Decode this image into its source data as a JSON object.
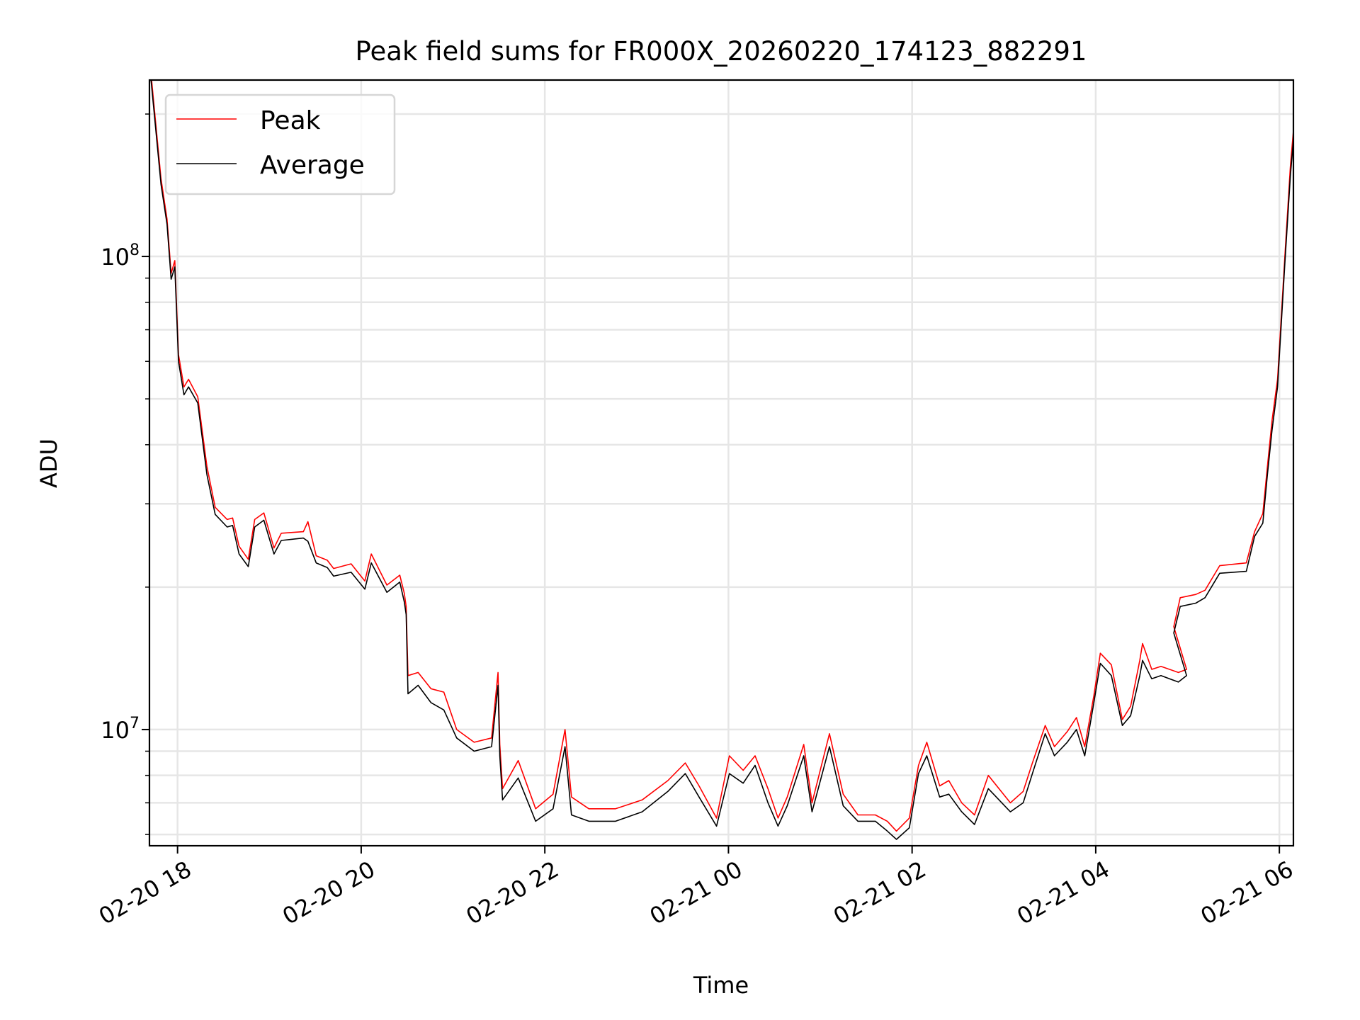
{
  "chart_data": {
    "type": "line",
    "title": "Peak field sums for FR000X_20260220_174123_882291",
    "xlabel": "Time",
    "ylabel": "ADU",
    "yscale": "log",
    "ylim": [
      5680000,
      236000000
    ],
    "xlim_hours": [
      17.694,
      30.153
    ],
    "grid": true,
    "legend_position": "top-left",
    "x_ticks": [
      {
        "hour": 18,
        "label": "02-20 18"
      },
      {
        "hour": 20,
        "label": "02-20 20"
      },
      {
        "hour": 22,
        "label": "02-20 22"
      },
      {
        "hour": 24,
        "label": "02-21 00"
      },
      {
        "hour": 26,
        "label": "02-21 02"
      },
      {
        "hour": 28,
        "label": "02-21 04"
      },
      {
        "hour": 30,
        "label": "02-21 06"
      }
    ],
    "y_ticks": [
      {
        "value": 10000000,
        "base": "10",
        "exp": "7"
      },
      {
        "value": 100000000,
        "base": "10",
        "exp": "8"
      }
    ],
    "series": [
      {
        "name": "Peak",
        "color": "#ff0000",
        "x_hours": [
          17.71,
          17.82,
          17.885,
          17.93,
          17.97,
          18.01,
          18.07,
          18.12,
          18.22,
          18.32,
          18.41,
          18.54,
          18.6,
          18.67,
          18.77,
          18.84,
          18.94,
          19.05,
          19.13,
          19.37,
          19.42,
          19.51,
          19.63,
          19.7,
          19.89,
          20.04,
          20.11,
          20.28,
          20.42,
          20.47,
          20.49,
          20.51,
          20.62,
          20.76,
          20.9,
          21.04,
          21.23,
          21.42,
          21.49,
          21.51,
          21.54,
          21.71,
          21.9,
          22.09,
          22.22,
          22.29,
          22.48,
          22.77,
          23.06,
          23.34,
          23.53,
          23.68,
          23.87,
          24.01,
          24.16,
          24.29,
          24.43,
          24.54,
          24.64,
          24.82,
          24.91,
          25.1,
          25.25,
          25.41,
          25.6,
          25.73,
          25.83,
          25.97,
          26.07,
          26.16,
          26.3,
          26.4,
          26.54,
          26.68,
          26.83,
          27.07,
          27.21,
          27.31,
          27.45,
          27.55,
          27.69,
          27.79,
          27.88,
          27.98,
          28.05,
          28.17,
          28.29,
          28.38,
          28.48,
          28.51,
          28.61,
          28.71,
          28.9,
          28.99,
          28.85,
          28.92,
          29.09,
          29.19,
          29.35,
          29.64,
          29.73,
          29.82,
          29.87,
          29.92,
          29.98,
          30.06,
          30.12,
          30.2,
          30.23
        ],
        "values": [
          244000000.0,
          146000000.0,
          120000000.0,
          92000000.0,
          98000000.0,
          62000000.0,
          53000000.0,
          55000000.0,
          50500000.0,
          36000000.0,
          29500000.0,
          27800000.0,
          28000000.0,
          24400000.0,
          22900000.0,
          27800000.0,
          28700000.0,
          24200000.0,
          26000000.0,
          26200000.0,
          27500000.0,
          23300000.0,
          22800000.0,
          21900000.0,
          22400000.0,
          20600000.0,
          23500000.0,
          20200000.0,
          21200000.0,
          19400000.0,
          18200000.0,
          13000000.0,
          13200000.0,
          12200000.0,
          12000000.0,
          10000000.0,
          9400000.0,
          9600000.0,
          13200000.0,
          9300000.0,
          7500000.0,
          8600000.0,
          6800000.0,
          7300000.0,
          10000000.0,
          7200000.0,
          6800000.0,
          6800000.0,
          7100000.0,
          7800000.0,
          8500000.0,
          7600000.0,
          6500000.0,
          8800000.0,
          8200000.0,
          8800000.0,
          7500000.0,
          6500000.0,
          7200000.0,
          9300000.0,
          7000000.0,
          9800000.0,
          7300000.0,
          6600000.0,
          6600000.0,
          6400000.0,
          6100000.0,
          6500000.0,
          8400000.0,
          9400000.0,
          7600000.0,
          7800000.0,
          7000000.0,
          6600000.0,
          8000000.0,
          7000000.0,
          7400000.0,
          8500000.0,
          10200000.0,
          9200000.0,
          9900000.0,
          10600000.0,
          9200000.0,
          11800000.0,
          14500000.0,
          13700000.0,
          10500000.0,
          11200000.0,
          14000000.0,
          15200000.0,
          13400000.0,
          13600000.0,
          13200000.0,
          13400000.0,
          16500000.0,
          19000000.0,
          19300000.0,
          19700000.0,
          22200000.0,
          22500000.0,
          26200000.0,
          28600000.0,
          36000000.0,
          45000000.0,
          55000000.0,
          100000000.0,
          155000000.0,
          236000000.0,
          244000000.0
        ]
      },
      {
        "name": "Average",
        "color": "#000000",
        "x_hours": [
          17.71,
          17.82,
          17.885,
          17.93,
          17.97,
          18.01,
          18.07,
          18.12,
          18.22,
          18.32,
          18.41,
          18.54,
          18.6,
          18.67,
          18.77,
          18.84,
          18.94,
          19.05,
          19.13,
          19.37,
          19.42,
          19.51,
          19.63,
          19.7,
          19.89,
          20.04,
          20.11,
          20.28,
          20.42,
          20.47,
          20.49,
          20.51,
          20.62,
          20.76,
          20.9,
          21.04,
          21.23,
          21.42,
          21.49,
          21.51,
          21.54,
          21.71,
          21.9,
          22.09,
          22.22,
          22.29,
          22.48,
          22.77,
          23.06,
          23.34,
          23.53,
          23.68,
          23.87,
          24.01,
          24.16,
          24.29,
          24.43,
          24.54,
          24.64,
          24.82,
          24.91,
          25.1,
          25.25,
          25.41,
          25.6,
          25.73,
          25.83,
          25.97,
          26.07,
          26.16,
          26.3,
          26.4,
          26.54,
          26.68,
          26.83,
          27.07,
          27.21,
          27.31,
          27.45,
          27.55,
          27.69,
          27.79,
          27.88,
          27.98,
          28.05,
          28.17,
          28.29,
          28.38,
          28.48,
          28.51,
          28.61,
          28.71,
          28.9,
          28.99,
          28.85,
          28.92,
          29.09,
          29.19,
          29.35,
          29.64,
          29.73,
          29.82,
          29.87,
          29.92,
          29.98,
          30.06,
          30.12,
          30.2,
          30.23
        ],
        "values": [
          237000000.0,
          142000000.0,
          117000000.0,
          89500000.0,
          95000000.0,
          60000000.0,
          51000000.0,
          53000000.0,
          49000000.0,
          34600000.0,
          28500000.0,
          26800000.0,
          27000000.0,
          23500000.0,
          22100000.0,
          26800000.0,
          27700000.0,
          23500000.0,
          25100000.0,
          25400000.0,
          25000000.0,
          22500000.0,
          22000000.0,
          21100000.0,
          21500000.0,
          19800000.0,
          22500000.0,
          19500000.0,
          20500000.0,
          18600000.0,
          17500000.0,
          11900000.0,
          12400000.0,
          11400000.0,
          11000000.0,
          9600000.0,
          9000000.0,
          9200000.0,
          12400000.0,
          8800000.0,
          7100000.0,
          7900000.0,
          6400000.0,
          6800000.0,
          9200000.0,
          6600000.0,
          6400000.0,
          6400000.0,
          6700000.0,
          7400000.0,
          8070000.0,
          7200000.0,
          6250000.0,
          8070000.0,
          7700000.0,
          8400000.0,
          7000000.0,
          6250000.0,
          6900000.0,
          8800000.0,
          6700000.0,
          9200000.0,
          6900000.0,
          6400000.0,
          6400000.0,
          6100000.0,
          5860000.0,
          6200000.0,
          8070000.0,
          8800000.0,
          7200000.0,
          7300000.0,
          6700000.0,
          6300000.0,
          7500000.0,
          6700000.0,
          7000000.0,
          8070000.0,
          9800000.0,
          8800000.0,
          9400000.0,
          10000000.0,
          8800000.0,
          11400000.0,
          13800000.0,
          13000000.0,
          10200000.0,
          10700000.0,
          13000000.0,
          14000000.0,
          12800000.0,
          13000000.0,
          12600000.0,
          13000000.0,
          16000000.0,
          18200000.0,
          18500000.0,
          19000000.0,
          21400000.0,
          21600000.0,
          25600000.0,
          27300000.0,
          34600000.0,
          42900000.0,
          53000000.0,
          96600000.0,
          148000000.0,
          227000000.0,
          237000000.0
        ]
      }
    ]
  }
}
